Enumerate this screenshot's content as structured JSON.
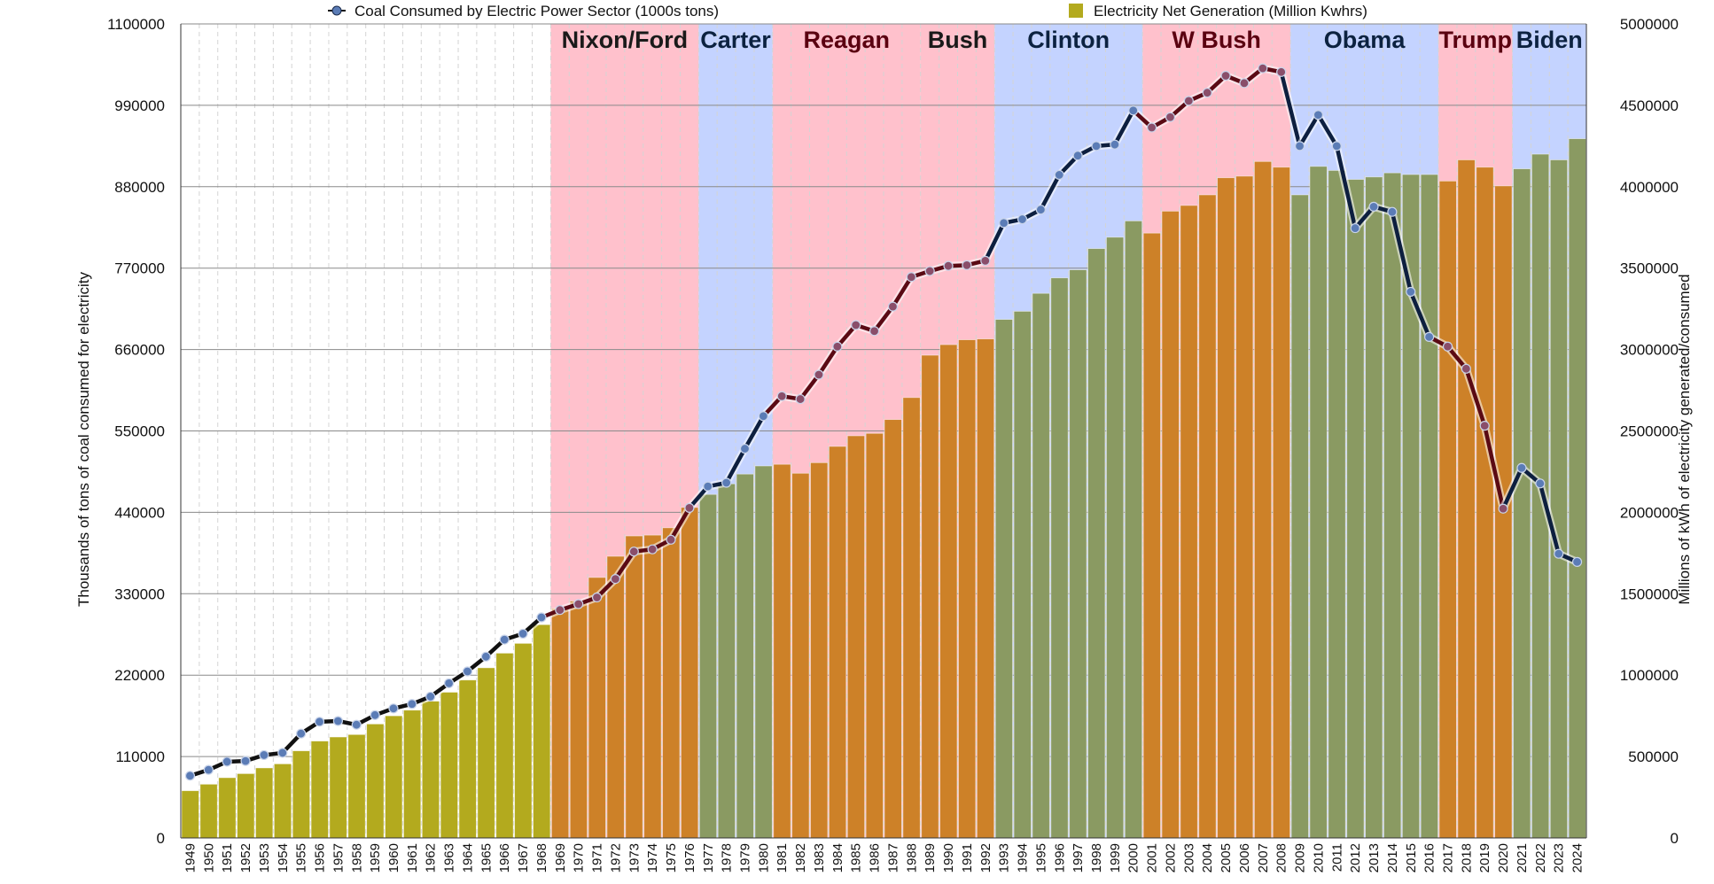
{
  "chart_data": {
    "type": "bar+line",
    "legend": {
      "placement": "top",
      "items": [
        {
          "label": "Coal Consumed by Electric Power Sector (1000s tons)",
          "marker": "line-dot"
        },
        {
          "label": "Electricity Net Generation (Million Kwhrs)",
          "marker": "square"
        }
      ]
    },
    "y_left": {
      "label": "Thousands of tons of coal consumed for electricity",
      "range": [
        0,
        1100000
      ],
      "ticks": [
        "0",
        "110000",
        "220000",
        "330000",
        "440000",
        "550000",
        "660000",
        "770000",
        "880000",
        "990000",
        "1100000"
      ]
    },
    "y_right": {
      "label": "Millions of kWh of electricity generated/consumed",
      "range": [
        0,
        5000000
      ],
      "ticks": [
        "0",
        "500000",
        "1000000",
        "1500000",
        "2000000",
        "2500000",
        "3000000",
        "3500000",
        "4000000",
        "4500000",
        "5000000"
      ]
    },
    "grid": true,
    "categories": [
      "1949",
      "1950",
      "1951",
      "1952",
      "1953",
      "1954",
      "1955",
      "1956",
      "1957",
      "1958",
      "1959",
      "1960",
      "1961",
      "1962",
      "1963",
      "1964",
      "1965",
      "1966",
      "1967",
      "1968",
      "1969",
      "1970",
      "1971",
      "1972",
      "1973",
      "1974",
      "1975",
      "1976",
      "1977",
      "1978",
      "1979",
      "1980",
      "1981",
      "1982",
      "1983",
      "1984",
      "1985",
      "1986",
      "1987",
      "1988",
      "1989",
      "1990",
      "1991",
      "1992",
      "1993",
      "1994",
      "1995",
      "1996",
      "1997",
      "1998",
      "1999",
      "2000",
      "2001",
      "2002",
      "2003",
      "2004",
      "2005",
      "2006",
      "2007",
      "2008",
      "2009",
      "2010",
      "2011",
      "2012",
      "2013",
      "2014",
      "2015",
      "2016",
      "2017",
      "2018",
      "2019",
      "2020",
      "2021",
      "2022",
      "2023",
      "2024"
    ],
    "series": [
      {
        "name": "Electricity Net Generation (Million Kwhrs)",
        "type": "bar",
        "axis": "right",
        "values": [
          290000,
          330000,
          370000,
          395000,
          430000,
          455000,
          535000,
          595000,
          620000,
          635000,
          700000,
          750000,
          785000,
          840000,
          895000,
          970000,
          1045000,
          1135000,
          1195000,
          1310000,
          1410000,
          1455000,
          1600000,
          1730000,
          1855000,
          1860000,
          1905000,
          2030000,
          2110000,
          2175000,
          2235000,
          2285000,
          2295000,
          2240000,
          2305000,
          2405000,
          2470000,
          2485000,
          2570000,
          2705000,
          2965000,
          3030000,
          3060000,
          3065000,
          3185000,
          3235000,
          3345000,
          3440000,
          3490000,
          3620000,
          3690000,
          3790000,
          3715000,
          3850000,
          3885000,
          3950000,
          4055000,
          4065000,
          4155000,
          4120000,
          3950000,
          4125000,
          4100000,
          4045000,
          4060000,
          4085000,
          4075000,
          4075000,
          4035000,
          4165000,
          4120000,
          4005000,
          4110000,
          4200000,
          4165000,
          4295000
        ]
      },
      {
        "name": "Coal Consumed by Electric Power Sector (1000s tons)",
        "type": "line",
        "axis": "left",
        "values": [
          84000,
          92000,
          103000,
          104000,
          112000,
          115000,
          141000,
          157000,
          158000,
          153000,
          166000,
          175000,
          181000,
          191000,
          209000,
          225000,
          245000,
          268000,
          276000,
          298000,
          308000,
          316000,
          325000,
          350000,
          387000,
          390000,
          403000,
          446000,
          475000,
          480000,
          526000,
          570000,
          597000,
          593000,
          626000,
          664000,
          693000,
          685000,
          718000,
          758000,
          766000,
          773000,
          774000,
          780000,
          831000,
          836000,
          849000,
          896000,
          922000,
          935000,
          937000,
          983000,
          960000,
          974000,
          996000,
          1007000,
          1030000,
          1020000,
          1040000,
          1035000,
          935000,
          977000,
          935000,
          824000,
          853000,
          846000,
          738000,
          677000,
          664000,
          634000,
          557000,
          445000,
          500000,
          479000,
          384000,
          373000
        ]
      }
    ],
    "eras": [
      {
        "label": "Nixon/Ford",
        "start": "1969",
        "end": "1976",
        "party_color": "#ffc1cc",
        "text_color": "#1a1a1a"
      },
      {
        "label": "Carter",
        "start": "1977",
        "end": "1980",
        "party_color": "#c4d3ff",
        "text_color": "#0c2240"
      },
      {
        "label": "Reagan",
        "start": "1981",
        "end": "1988",
        "party_color": "#ffc1cc",
        "text_color": "#5a0010"
      },
      {
        "label": "Bush",
        "start": "1989",
        "end": "1992",
        "party_color": "#ffc1cc",
        "text_color": "#1a1a1a"
      },
      {
        "label": "Clinton",
        "start": "1993",
        "end": "2000",
        "party_color": "#c4d3ff",
        "text_color": "#0c2240"
      },
      {
        "label": "W Bush",
        "start": "2001",
        "end": "2008",
        "party_color": "#ffc1cc",
        "text_color": "#5a0010"
      },
      {
        "label": "Obama",
        "start": "2009",
        "end": "2016",
        "party_color": "#c4d3ff",
        "text_color": "#0c2240"
      },
      {
        "label": "Trump",
        "start": "2017",
        "end": "2020",
        "party_color": "#ffc1cc",
        "text_color": "#5a0010"
      },
      {
        "label": "Biden",
        "start": "2021",
        "end": "2024",
        "party_color": "#c4d3ff",
        "text_color": "#0c2240"
      }
    ],
    "colors": {
      "bar_pre_1969": "#b3aa1e",
      "bar_republican": "#cd8128",
      "bar_democrat": "#8a9a62",
      "line_republican": "#5a0a14",
      "line_democrat": "#0d1f3f",
      "line_pre_1969": "#111111",
      "marker": "#5b7cb6",
      "gridline": "#8a8a8a"
    }
  }
}
